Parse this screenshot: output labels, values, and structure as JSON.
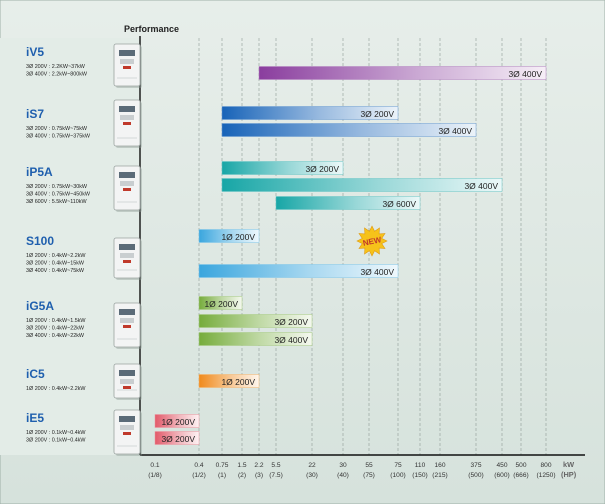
{
  "chart_data": {
    "type": "bar",
    "title": "Performance",
    "x_unit": "kW",
    "x_unit_alt": "(HP)",
    "x_ticks": [
      {
        "kw": "0.1",
        "hp": "(1/8)"
      },
      {
        "kw": "0.4",
        "hp": "(1/2)"
      },
      {
        "kw": "0.75",
        "hp": "(1)"
      },
      {
        "kw": "1.5",
        "hp": "(2)"
      },
      {
        "kw": "2.2",
        "hp": "(3)"
      },
      {
        "kw": "5.5",
        "hp": "(7.5)"
      },
      {
        "kw": "22",
        "hp": "(30)"
      },
      {
        "kw": "30",
        "hp": "(40)"
      },
      {
        "kw": "55",
        "hp": "(75)"
      },
      {
        "kw": "75",
        "hp": "(100)"
      },
      {
        "kw": "110",
        "hp": "(150)"
      },
      {
        "kw": "160",
        "hp": "(215)"
      },
      {
        "kw": "375",
        "hp": "(500)"
      },
      {
        "kw": "450",
        "hp": "(600)"
      },
      {
        "kw": "500",
        "hp": "(666)"
      },
      {
        "kw": "800",
        "hp": "(1250)"
      }
    ],
    "products": [
      {
        "name": "iV5",
        "specs": [
          "3Ø 200V : 2.2KW~37kW",
          "3Ø 400V : 2.2kW~800kW"
        ],
        "bars": [
          {
            "label": "3Ø 200V",
            "from": "2.2",
            "to": "37"
          },
          {
            "label": "3Ø 400V",
            "from": "2.2",
            "to": "800"
          }
        ]
      },
      {
        "name": "iS7",
        "specs": [
          "3Ø 200V : 0.75kW~75kW",
          "3Ø 400V : 0.75kW~375kW"
        ],
        "bars": [
          {
            "label": "3Ø 200V",
            "from": "0.75",
            "to": "75"
          },
          {
            "label": "3Ø 400V",
            "from": "0.75",
            "to": "375"
          }
        ]
      },
      {
        "name": "iP5A",
        "specs": [
          "3Ø 200V : 0.75kW~30kW",
          "3Ø 400V : 0.75kW~450kW",
          "3Ø 600V : 5.5kW~110kW"
        ],
        "bars": [
          {
            "label": "3Ø 200V",
            "from": "0.75",
            "to": "30"
          },
          {
            "label": "3Ø 400V",
            "from": "0.75",
            "to": "450"
          },
          {
            "label": "3Ø 600V",
            "from": "5.5",
            "to": "110"
          }
        ]
      },
      {
        "name": "S100",
        "specs": [
          "1Ø 200V : 0.4kW~2.2kW",
          "3Ø 200V : 0.4kW~15kW",
          "3Ø 400V : 0.4kW~75kW"
        ],
        "badge": "NEW",
        "bars": [
          {
            "label": "1Ø 200V",
            "from": "0.4",
            "to": "2.2"
          },
          {
            "label": "3Ø 200V",
            "from": "0.4",
            "to": "15"
          },
          {
            "label": "3Ø 400V",
            "from": "0.4",
            "to": "75"
          }
        ]
      },
      {
        "name": "iG5A",
        "specs": [
          "1Ø 200V : 0.4kW~1.5kW",
          "3Ø 200V : 0.4kW~22kW",
          "3Ø 400V : 0.4kW~22kW"
        ],
        "bars": [
          {
            "label": "1Ø 200V",
            "from": "0.4",
            "to": "1.5"
          },
          {
            "label": "3Ø 200V",
            "from": "0.4",
            "to": "22"
          },
          {
            "label": "3Ø 400V",
            "from": "0.4",
            "to": "22"
          }
        ]
      },
      {
        "name": "iC5",
        "specs": [
          "1Ø 200V : 0.4kW~2.2kW"
        ],
        "bars": [
          {
            "label": "1Ø 200V",
            "from": "0.4",
            "to": "2.2"
          }
        ]
      },
      {
        "name": "iE5",
        "specs": [
          "1Ø 200V : 0.1kW~0.4kW",
          "3Ø 200V : 0.1kW~0.4kW"
        ],
        "bars": [
          {
            "label": "1Ø 200V",
            "from": "0.1",
            "to": "0.4"
          },
          {
            "label": "3Ø 200V",
            "from": "0.1",
            "to": "0.4"
          }
        ]
      }
    ],
    "colors": {
      "iV5": "#8a3d9e",
      "iS7": "#1763b8",
      "iP5A": "#17a6a6",
      "S100": "#3aa6de",
      "iG5A": "#76ac3c",
      "iC5": "#f08a1c",
      "iE5": "#e25a6a"
    }
  }
}
